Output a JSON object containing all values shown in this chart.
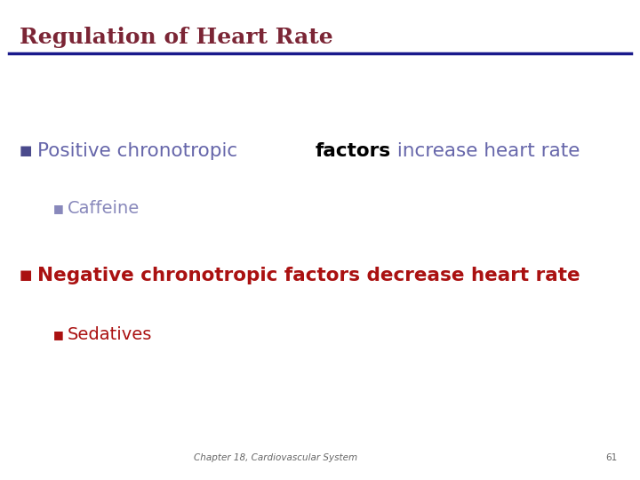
{
  "title": "Regulation of Heart Rate",
  "title_color": "#7B2535",
  "title_fontsize": 18,
  "line_color": "#1A1A8C",
  "background_color": "#FFFFFF",
  "bullet_color": "#4A4A8C",
  "bullet1_pre": "Positive chronotropic ",
  "bullet1_bold": "factors",
  "bullet1_post": " increase heart rate",
  "bullet1_color": "#6666AA",
  "bullet1_bold_color": "#000000",
  "bullet1_sub_text": "Caffeine",
  "bullet1_sub_color": "#8888BB",
  "bullet2_text": "Negative chronotropic factors decrease heart rate",
  "bullet2_color": "#AA1111",
  "bullet2_sub_text": "Sedatives",
  "bullet2_sub_color": "#AA1111",
  "footer_text": "Chapter 18, Cardiovascular System",
  "footer_page": "61",
  "footer_color": "#666666",
  "footer_fontsize": 7.5
}
